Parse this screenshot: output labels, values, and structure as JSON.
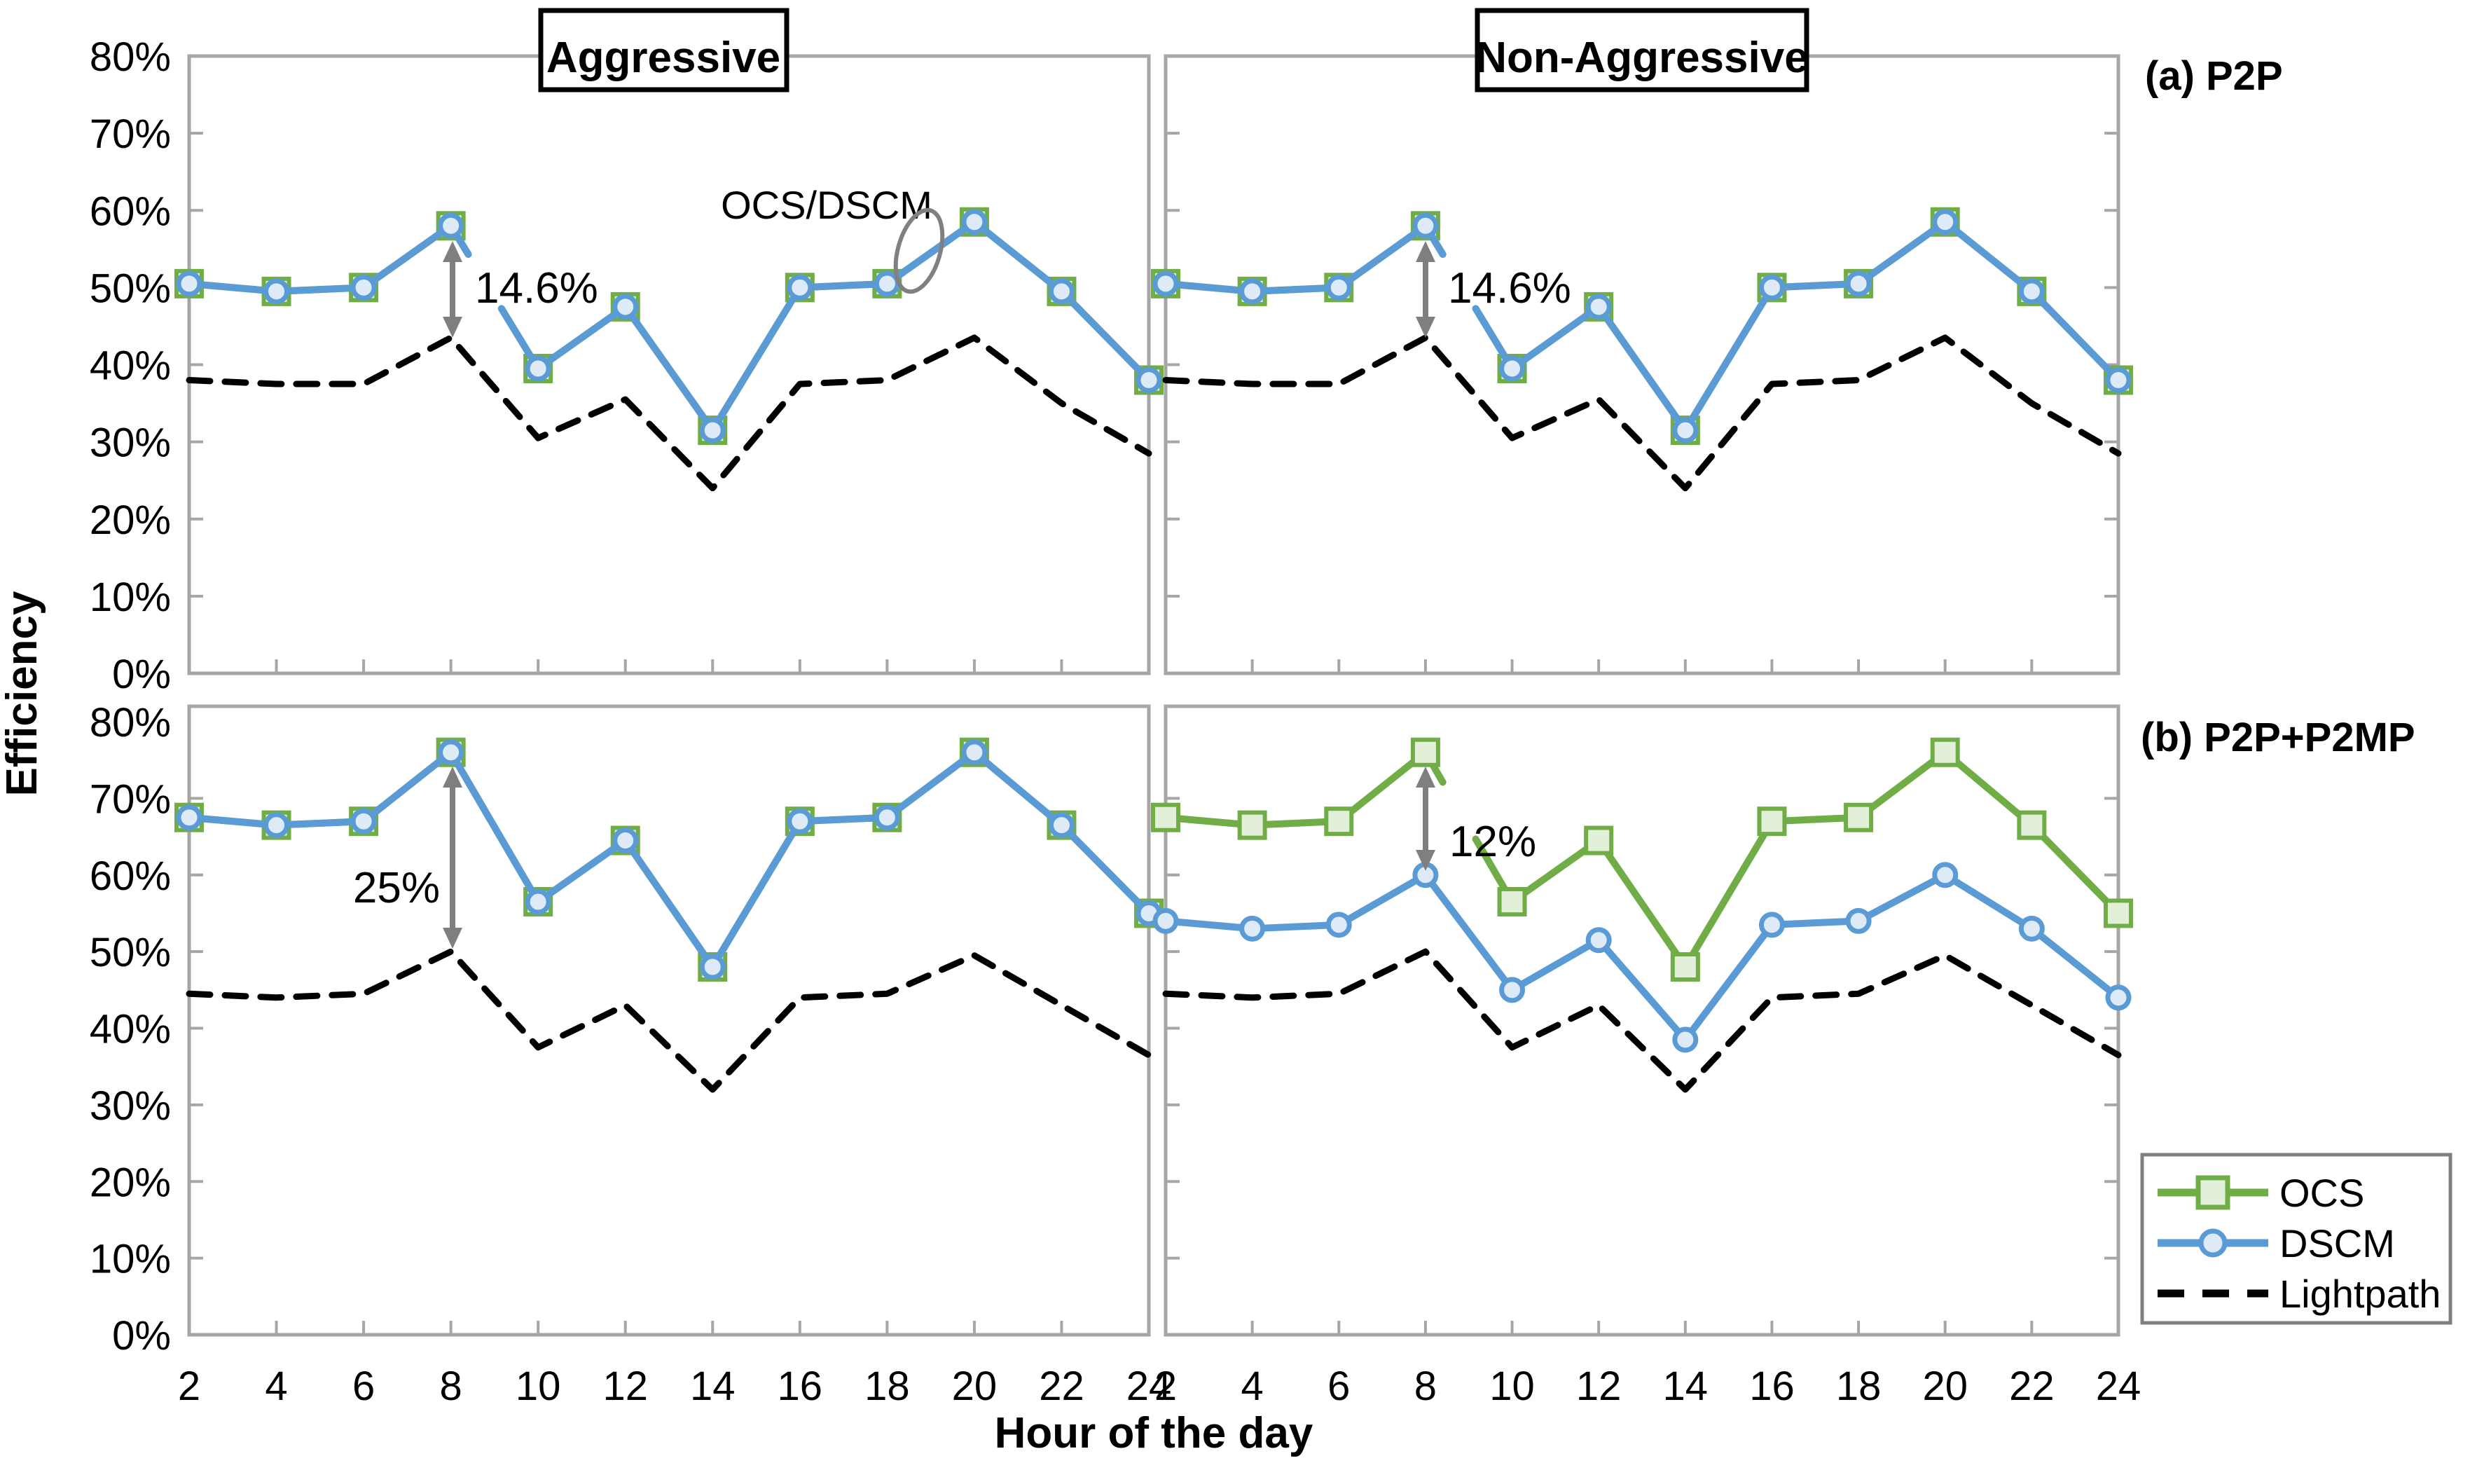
{
  "figure": {
    "col_titles": [
      "Aggressive",
      "Non-Aggressive"
    ],
    "row_labels": [
      "(a) P2P",
      "(b) P2P+P2MP"
    ],
    "y_axis_title": "Efficiency",
    "x_axis_title": "Hour of the day"
  },
  "legend": {
    "items": [
      {
        "label": "OCS",
        "marker": "square",
        "color": "#70AD47",
        "fill": "#E2EFD9"
      },
      {
        "label": "DSCM",
        "marker": "circle",
        "color": "#5B9BD5",
        "fill": "#DEEAF6"
      },
      {
        "label": "Lightpath",
        "marker": "dash",
        "color": "#000000"
      }
    ]
  },
  "annotations": {
    "p2p_aggressive_gain": "14.6%",
    "p2p_nonaggressive_gain": "14.6%",
    "p2mp_aggressive_gain": "25%",
    "p2mp_nonaggressive_gain": "12%",
    "overlap_label": "OCS/DSCM"
  },
  "colors": {
    "ocs": "#70AD47",
    "ocs_fill": "#E2EFD9",
    "dscm": "#5B9BD5",
    "dscm_fill": "#DEEAF6",
    "lightpath": "#000000",
    "panel_border": "#A6A6A6",
    "annotation_gray": "#7F7F7F",
    "text": "#000000"
  },
  "chart_data": {
    "type": "line",
    "xlabel": "Hour of the day",
    "ylabel": "Efficiency",
    "ylim": [
      0,
      80
    ],
    "grid": false,
    "legend_position": "bottom-right-outside",
    "x": [
      2,
      4,
      6,
      8,
      10,
      12,
      14,
      16,
      18,
      20,
      22,
      24
    ],
    "x_tick_labels": [
      "2",
      "4",
      "6",
      "8",
      "10",
      "12",
      "14",
      "16",
      "18",
      "20",
      "22",
      "24"
    ],
    "y_tick_labels": [
      "80%",
      "70%",
      "60%",
      "50%",
      "40%",
      "30%",
      "20%",
      "10%",
      "0%"
    ],
    "panels": [
      {
        "id": "p2p-aggressive",
        "row": 0,
        "col": 0,
        "condition": "Aggressive",
        "traffic": "P2P",
        "series": [
          {
            "name": "Lightpath",
            "style": "dashed",
            "values": [
              38,
              37.5,
              37.5,
              43.5,
              30.5,
              35.5,
              24,
              37.5,
              38,
              43.5,
              35,
              28.5
            ]
          },
          {
            "name": "OCS",
            "style": "square",
            "overlaps_with": "DSCM",
            "line_break_after_hour": 8,
            "values": [
              50.5,
              49.5,
              50,
              58,
              39.5,
              47.5,
              31.5,
              50,
              50.5,
              58.5,
              49.5,
              38
            ]
          },
          {
            "name": "DSCM",
            "style": "circle",
            "line_break_after_hour": 8,
            "values": [
              50.5,
              49.5,
              50,
              58,
              39.5,
              47.5,
              31.5,
              50,
              50.5,
              58.5,
              49.5,
              38
            ]
          }
        ]
      },
      {
        "id": "p2p-nonaggressive",
        "row": 0,
        "col": 1,
        "condition": "Non-Aggressive",
        "traffic": "P2P",
        "series": [
          {
            "name": "Lightpath",
            "style": "dashed",
            "values": [
              38,
              37.5,
              37.5,
              43.5,
              30.5,
              35.5,
              24,
              37.5,
              38,
              43.5,
              35,
              28.5
            ]
          },
          {
            "name": "OCS",
            "style": "square",
            "overlaps_with": "DSCM",
            "line_break_after_hour": 8,
            "values": [
              50.5,
              49.5,
              50,
              58,
              39.5,
              47.5,
              31.5,
              50,
              50.5,
              58.5,
              49.5,
              38
            ]
          },
          {
            "name": "DSCM",
            "style": "circle",
            "line_break_after_hour": 8,
            "values": [
              50.5,
              49.5,
              50,
              58,
              39.5,
              47.5,
              31.5,
              50,
              50.5,
              58.5,
              49.5,
              38
            ]
          }
        ]
      },
      {
        "id": "p2p-p2mp-aggressive",
        "row": 1,
        "col": 0,
        "condition": "Aggressive",
        "traffic": "P2P+P2MP",
        "series": [
          {
            "name": "Lightpath",
            "style": "dashed",
            "values": [
              44.5,
              44,
              44.5,
              50,
              37.5,
              43,
              32,
              44,
              44.5,
              49.5,
              43,
              36.5
            ]
          },
          {
            "name": "OCS",
            "style": "square",
            "overlaps_with": "DSCM",
            "values": [
              67.5,
              66.5,
              67,
              76,
              56.5,
              64.5,
              48,
              67,
              67.5,
              76,
              66.5,
              55
            ]
          },
          {
            "name": "DSCM",
            "style": "circle",
            "values": [
              67.5,
              66.5,
              67,
              76,
              56.5,
              64.5,
              48,
              67,
              67.5,
              76,
              66.5,
              55
            ]
          }
        ]
      },
      {
        "id": "p2p-p2mp-nonaggressive",
        "row": 1,
        "col": 1,
        "condition": "Non-Aggressive",
        "traffic": "P2P+P2MP",
        "series": [
          {
            "name": "Lightpath",
            "style": "dashed",
            "values": [
              44.5,
              44,
              44.5,
              50,
              37.5,
              43,
              32,
              44,
              44.5,
              49.5,
              43,
              36.5
            ]
          },
          {
            "name": "OCS",
            "style": "square",
            "line_break_after_hour": 8,
            "values": [
              67.5,
              66.5,
              67,
              76,
              56.5,
              64.5,
              48,
              67,
              67.5,
              76,
              66.5,
              55
            ]
          },
          {
            "name": "DSCM",
            "style": "circle",
            "values": [
              54,
              53,
              53.5,
              60,
              45,
              51.5,
              38.5,
              53.5,
              54,
              60,
              53,
              44
            ]
          }
        ]
      }
    ]
  }
}
